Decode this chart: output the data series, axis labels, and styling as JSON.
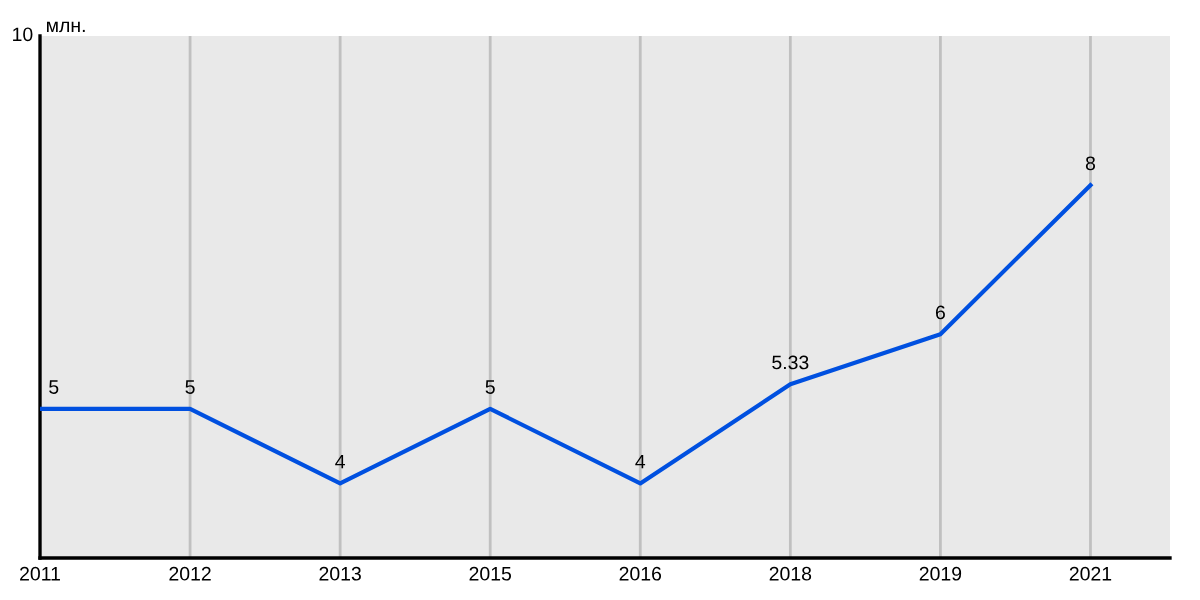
{
  "chart_data": {
    "type": "line",
    "ylabel": "млн.",
    "categories": [
      "2011",
      "2012",
      "2013",
      "2015",
      "2016",
      "2018",
      "2019",
      "2021"
    ],
    "series": [
      {
        "color": "#0050e0",
        "values": [
          5,
          5,
          4,
          5,
          4,
          5.33,
          6,
          8
        ]
      }
    ],
    "ylim": [
      3,
      10
    ],
    "annotations": [
      "10"
    ],
    "grid": "x",
    "data_labels": true,
    "marker": "none",
    "line_style": "solid"
  }
}
